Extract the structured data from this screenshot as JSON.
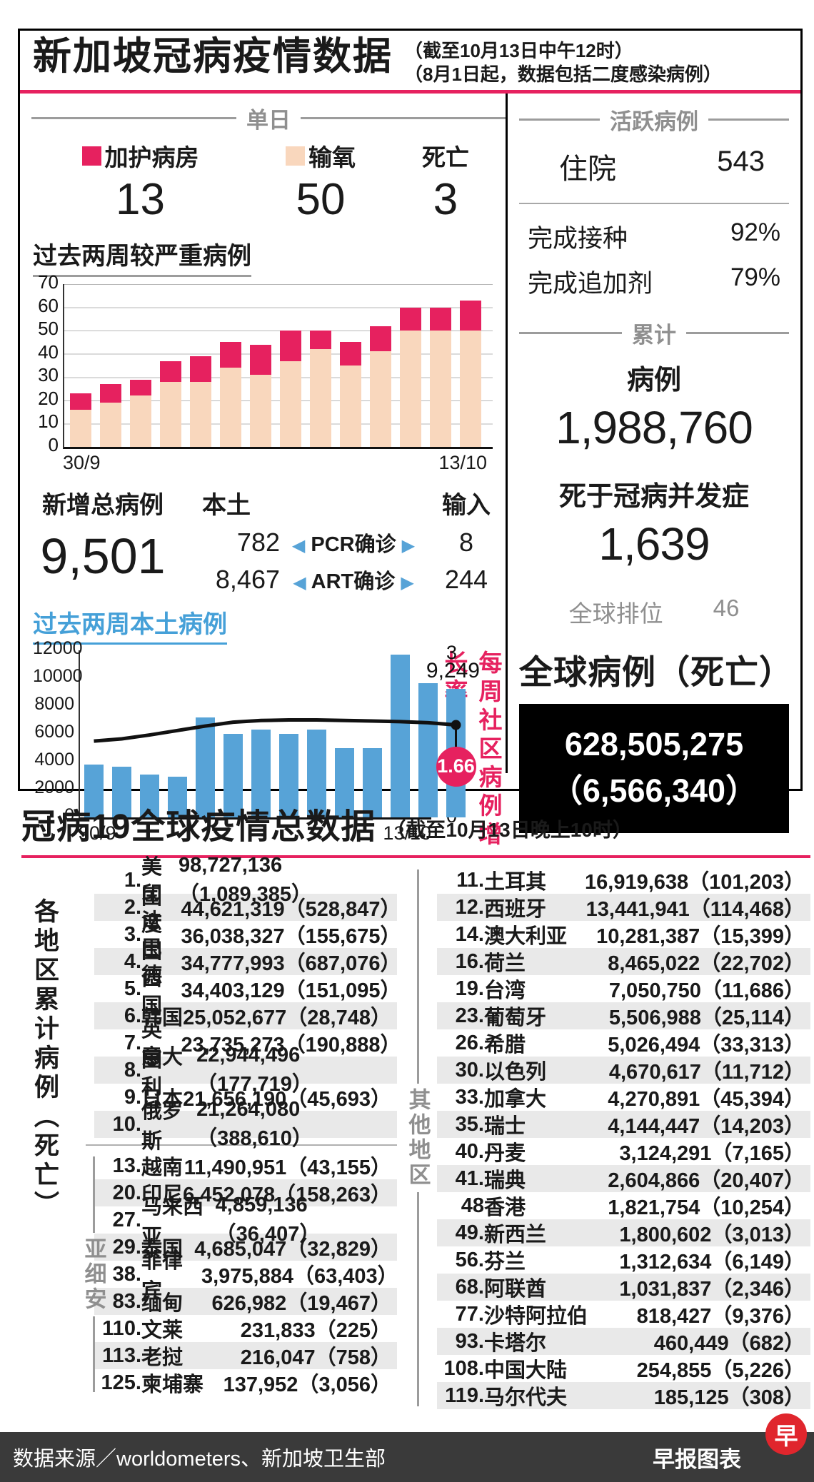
{
  "header": {
    "title": "新加坡冠病疫情数据",
    "note1": "（截至10月13日中午12时）",
    "note2": "（8月1日起，数据包括二度感染病例）"
  },
  "colors": {
    "accent_pink": "#e6215f",
    "oxygen_peach": "#f9d7bd",
    "bar_blue": "#57a3d7",
    "logo_red": "#e0262d"
  },
  "icons": {
    "arrow_left": "◀",
    "arrow_right": "▶"
  },
  "daily": {
    "section_label": "单日",
    "legend": [
      {
        "label": "加护病房",
        "value": "13",
        "color": "#e6215f"
      },
      {
        "label": "输氧",
        "value": "50",
        "color": "#f9d7bd"
      },
      {
        "label": "死亡",
        "value": "3",
        "color": null
      }
    ]
  },
  "chart_data": [
    {
      "type": "bar",
      "stacked": true,
      "title": "过去两周较严重病例",
      "x_first": "30/9",
      "x_last": "13/10",
      "ylim": [
        0,
        70
      ],
      "yticks": [
        0,
        10,
        20,
        30,
        40,
        50,
        60,
        70
      ],
      "grid": true,
      "series": [
        {
          "name": "输氧",
          "color": "#f9d7bd",
          "values": [
            16,
            19,
            22,
            28,
            28,
            34,
            31,
            37,
            42,
            35,
            41,
            50,
            50,
            50
          ]
        },
        {
          "name": "加护病房",
          "color": "#e6215f",
          "values": [
            7,
            8,
            7,
            9,
            11,
            11,
            13,
            13,
            8,
            10,
            11,
            10,
            10,
            13
          ]
        }
      ]
    },
    {
      "type": "bar+line",
      "title": "过去两周本土病例",
      "x_first": "30/9",
      "x_last": "13/10",
      "ylim_left": [
        0,
        12000
      ],
      "yticks_left": [
        0,
        2000,
        4000,
        6000,
        8000,
        10000,
        12000
      ],
      "ylim_right": [
        0,
        3
      ],
      "yticks_right": [
        0,
        3
      ],
      "grid": false,
      "bar_color": "#57a3d7",
      "bar_values": [
        3800,
        3650,
        3100,
        2900,
        7200,
        6000,
        6300,
        6000,
        6300,
        5000,
        4950,
        11700,
        9650,
        9249
      ],
      "last_bar_label": "9,249",
      "line_name": "每周社区病例增长率",
      "line_color": "#111111",
      "line_values": [
        1.37,
        1.41,
        1.48,
        1.56,
        1.64,
        1.71,
        1.74,
        1.75,
        1.75,
        1.74,
        1.73,
        1.72,
        1.7,
        1.66
      ],
      "line_end_label": "1.66"
    }
  ],
  "new_cases": {
    "label": "新增总病例",
    "value": "9,501",
    "local_label": "本土",
    "import_label": "输入",
    "rows": [
      {
        "local": "782",
        "test": "PCR确诊",
        "imported": "8"
      },
      {
        "local": "8,467",
        "test": "ART确诊",
        "imported": "244"
      }
    ]
  },
  "active": {
    "section_label": "活跃病例",
    "hospital_label": "住院",
    "hospital_value": "543",
    "vacc_label": "完成接种",
    "vacc_value": "92%",
    "booster_label": "完成追加剂",
    "booster_value": "79%"
  },
  "cumulative": {
    "section_label": "累计",
    "cases_label": "病例",
    "cases_value": "1,988,760",
    "deaths_label": "死于冠病并发症",
    "deaths_value": "1,639",
    "rank_label": "全球排位",
    "rank_value": "46",
    "global_label": "全球病例（死亡）",
    "global_cases": "628,505,275",
    "global_deaths": "（6,566,340）"
  },
  "global_section": {
    "title": "冠病19全球疫情总数据",
    "note": "（截至10月13日晚上10时）",
    "side_label": "各地区累计病例（死亡）",
    "asean_label": "亚细安",
    "others_label": "其他地区",
    "col1_top": [
      {
        "rank": "1.",
        "name": "美国",
        "value": "98,727,136（1,089,385）"
      },
      {
        "rank": "2.",
        "name": "印度",
        "value": "44,621,319（528,847）"
      },
      {
        "rank": "3.",
        "name": "法国",
        "value": "36,038,327（155,675）"
      },
      {
        "rank": "4.",
        "name": "巴西",
        "value": "34,777,993（687,076）"
      },
      {
        "rank": "5.",
        "name": "德国",
        "value": "34,403,129（151,095）"
      },
      {
        "rank": "6.",
        "name": "韩国",
        "value": "25,052,677（28,748）"
      },
      {
        "rank": "7.",
        "name": "英国",
        "value": "23,735,273（190,888）"
      },
      {
        "rank": "8.",
        "name": "意大利",
        "value": "22,944,496（177,719）"
      },
      {
        "rank": "9.",
        "name": "日本",
        "value": "21,656,190（45,693）"
      },
      {
        "rank": "10.",
        "name": "俄罗斯",
        "value": "21,264,080（388,610）"
      }
    ],
    "col1_asean": [
      {
        "rank": "13.",
        "name": "越南",
        "value": "11,490,951（43,155）"
      },
      {
        "rank": "20.",
        "name": "印尼",
        "value": "6,452,078（158,263）"
      },
      {
        "rank": "27.",
        "name": "马来西亚",
        "value": "4,859,136（36,407）"
      },
      {
        "rank": "29.",
        "name": "泰国",
        "value": "4,685,047（32,829）"
      },
      {
        "rank": "38.",
        "name": "菲律宾",
        "value": "3,975,884（63,403）"
      },
      {
        "rank": "83.",
        "name": "缅甸",
        "value": "626,982（19,467）"
      },
      {
        "rank": "110.",
        "name": "文莱",
        "value": "231,833（225）"
      },
      {
        "rank": "113.",
        "name": "老挝",
        "value": "216,047（758）"
      },
      {
        "rank": "125.",
        "name": "柬埔寨",
        "value": "137,952（3,056）"
      }
    ],
    "col2": [
      {
        "rank": "11.",
        "name": "土耳其",
        "value": "16,919,638（101,203）"
      },
      {
        "rank": "12.",
        "name": "西班牙",
        "value": "13,441,941（114,468）"
      },
      {
        "rank": "14.",
        "name": "澳大利亚",
        "value": "10,281,387（15,399）"
      },
      {
        "rank": "16.",
        "name": "荷兰",
        "value": "8,465,022（22,702）"
      },
      {
        "rank": "19.",
        "name": "台湾",
        "value": "7,050,750（11,686）"
      },
      {
        "rank": "23.",
        "name": "葡萄牙",
        "value": "5,506,988（25,114）"
      },
      {
        "rank": "26.",
        "name": "希腊",
        "value": "5,026,494（33,313）"
      },
      {
        "rank": "30.",
        "name": "以色列",
        "value": "4,670,617（11,712）"
      },
      {
        "rank": "33.",
        "name": "加拿大",
        "value": "4,270,891（45,394）"
      },
      {
        "rank": "35.",
        "name": "瑞士",
        "value": "4,144,447（14,203）"
      },
      {
        "rank": "40.",
        "name": "丹麦",
        "value": "3,124,291（7,165）"
      },
      {
        "rank": "41.",
        "name": "瑞典",
        "value": "2,604,866（20,407）"
      },
      {
        "rank": "48",
        "name": "香港",
        "value": "1,821,754（10,254）"
      },
      {
        "rank": "49.",
        "name": "新西兰",
        "value": "1,800,602（3,013）"
      },
      {
        "rank": "56.",
        "name": "芬兰",
        "value": "1,312,634（6,149）"
      },
      {
        "rank": "68.",
        "name": "阿联酋",
        "value": "1,031,837（2,346）"
      },
      {
        "rank": "77.",
        "name": "沙特阿拉伯",
        "value": "818,427（9,376）"
      },
      {
        "rank": "93.",
        "name": "卡塔尔",
        "value": "460,449（682）"
      },
      {
        "rank": "108.",
        "name": "中国大陆",
        "value": "254,855（5,226）"
      },
      {
        "rank": "119.",
        "name": "马尔代夫",
        "value": "185,125（308）"
      }
    ]
  },
  "footer": {
    "source": "数据来源／worldometers、新加坡卫生部",
    "brand": "早报图表",
    "logo_char": "早"
  }
}
